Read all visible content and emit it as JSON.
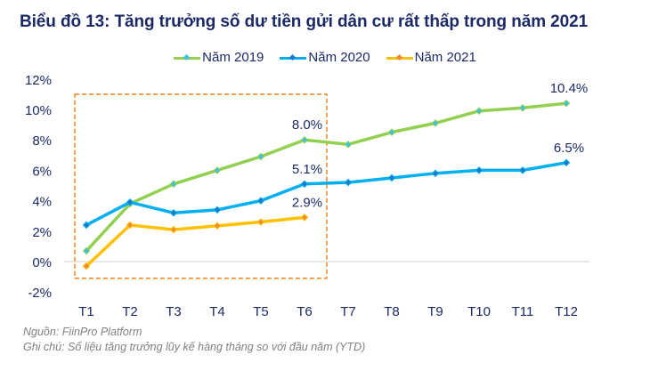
{
  "chart_data": {
    "type": "line",
    "title": "Biểu đồ 13: Tăng trưởng số dư tiền gửi dân cư rất thấp trong năm 2021",
    "xlabel": "",
    "ylabel": "",
    "categories": [
      "T1",
      "T2",
      "T3",
      "T4",
      "T5",
      "T6",
      "T7",
      "T8",
      "T9",
      "T10",
      "T11",
      "T12"
    ],
    "ylim": [
      -2,
      12
    ],
    "yticks": [
      -2,
      0,
      2,
      4,
      6,
      8,
      10,
      12
    ],
    "ytick_labels": [
      "-2%",
      "0%",
      "2%",
      "4%",
      "6%",
      "8%",
      "10%",
      "12%"
    ],
    "grid": false,
    "legend_position": "top-center",
    "series": [
      {
        "name": "Năm 2019",
        "color": "#92D050",
        "marker_color": "#3FC0E8",
        "values": [
          0.7,
          3.8,
          5.1,
          6.0,
          6.9,
          8.0,
          7.7,
          8.5,
          9.1,
          9.9,
          10.1,
          10.4
        ]
      },
      {
        "name": "Năm 2020",
        "color": "#00B0F0",
        "marker_color": "#1F78C8",
        "values": [
          2.4,
          3.9,
          3.2,
          3.4,
          4.0,
          5.1,
          5.2,
          5.5,
          5.8,
          6.0,
          6.0,
          6.5
        ]
      },
      {
        "name": "Năm 2021",
        "color": "#FFC000",
        "marker_color": "#F08A30",
        "values": [
          -0.3,
          2.4,
          2.1,
          2.35,
          2.6,
          2.9
        ]
      }
    ],
    "annotations": [
      {
        "series": 0,
        "index": 5,
        "text": "8.0%"
      },
      {
        "series": 0,
        "index": 11,
        "text": "10.4%"
      },
      {
        "series": 1,
        "index": 5,
        "text": "5.1%"
      },
      {
        "series": 1,
        "index": 11,
        "text": "6.5%"
      },
      {
        "series": 2,
        "index": 5,
        "text": "2.9%"
      }
    ],
    "highlight_box": {
      "from_category": "T1",
      "to_category": "T6",
      "y_from": -1.1,
      "y_to": 11.0,
      "color": "#F08A30",
      "style": "dashed"
    }
  },
  "notes": {
    "source": "Nguồn: FiinPro Platform",
    "remark": "Ghi chú: Số liệu tăng trưởng lũy kế hàng tháng so với đầu năm (YTD)"
  }
}
